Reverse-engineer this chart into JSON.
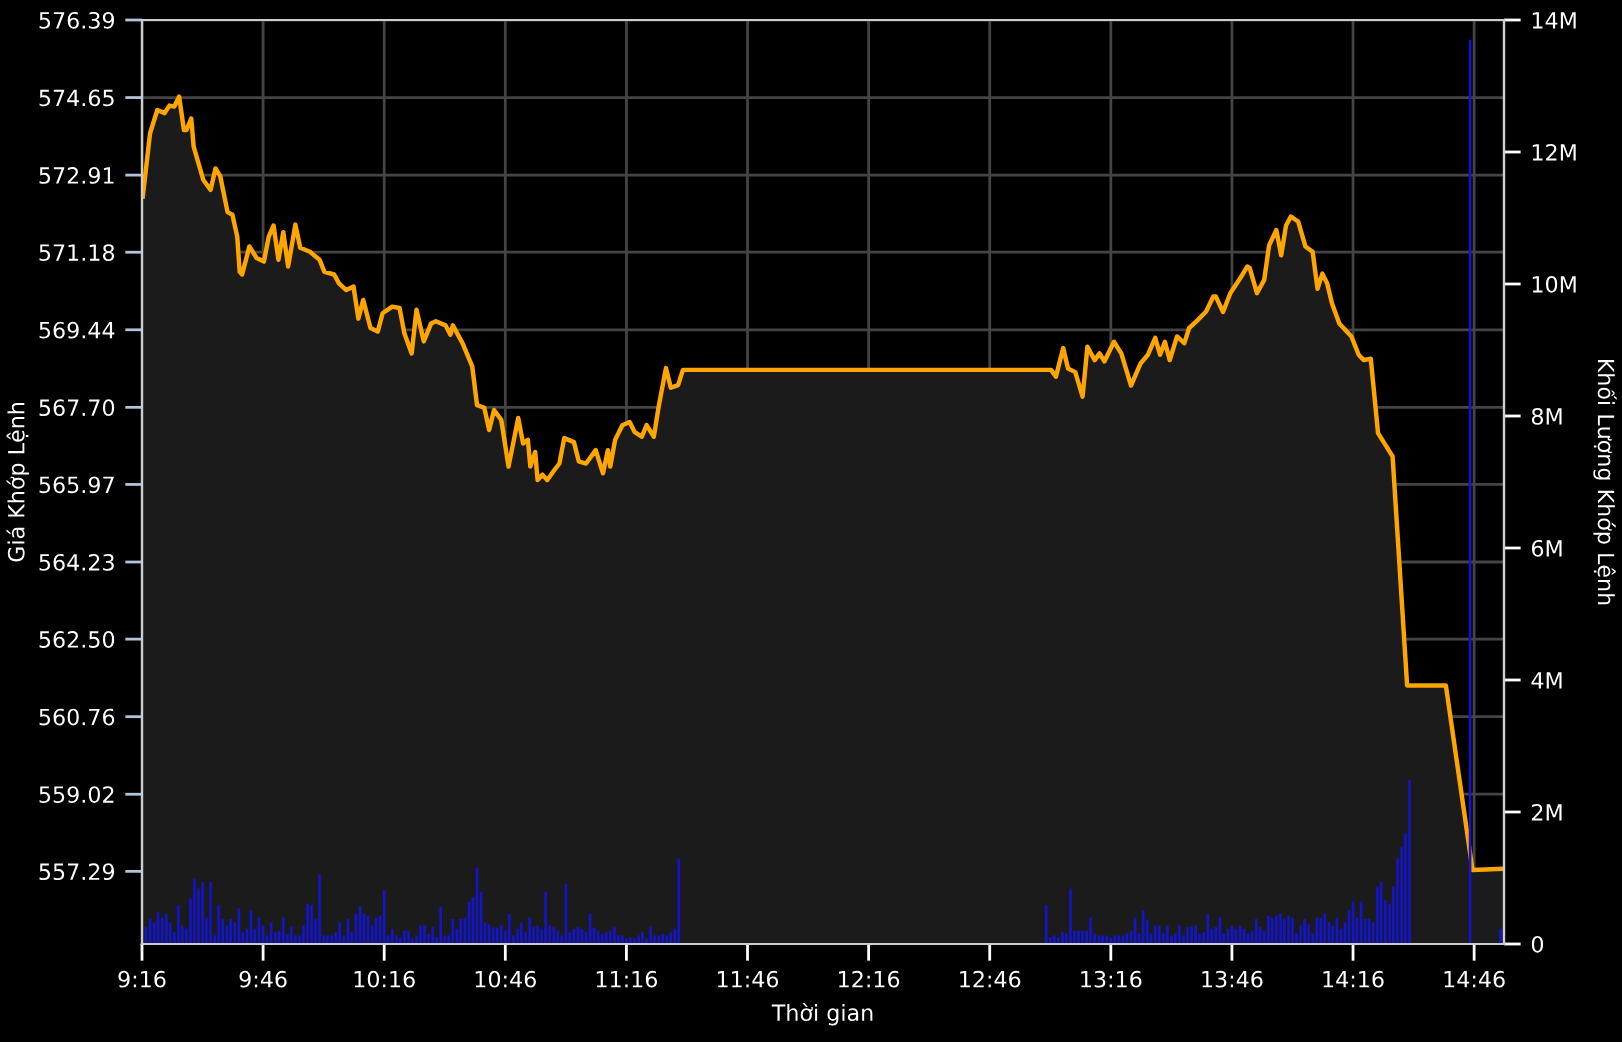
{
  "chart_data": {
    "type": "area",
    "xlabel": "Thời gian",
    "ylabel": "Giá Khớp Lệnh",
    "y2label": "Khối Lượng Khớp Lệnh",
    "xlim": [
      9.2667,
      14.89
    ],
    "xticks": [
      {
        "value": 9.2667,
        "label": "9:16"
      },
      {
        "value": 9.7667,
        "label": "9:46"
      },
      {
        "value": 10.2667,
        "label": "10:16"
      },
      {
        "value": 10.7667,
        "label": "10:46"
      },
      {
        "value": 11.2667,
        "label": "11:16"
      },
      {
        "value": 11.7667,
        "label": "11:46"
      },
      {
        "value": 12.2667,
        "label": "12:16"
      },
      {
        "value": 12.7667,
        "label": "12:46"
      },
      {
        "value": 13.2667,
        "label": "13:16"
      },
      {
        "value": 13.7667,
        "label": "13:46"
      },
      {
        "value": 14.2667,
        "label": "14:16"
      },
      {
        "value": 14.7667,
        "label": "14:46"
      }
    ],
    "ylim": [
      555.66,
      576.39
    ],
    "yticks": [
      {
        "value": 557.29,
        "label": "557.29"
      },
      {
        "value": 559.02,
        "label": "559.02"
      },
      {
        "value": 560.76,
        "label": "560.76"
      },
      {
        "value": 562.5,
        "label": "562.50"
      },
      {
        "value": 564.23,
        "label": "564.23"
      },
      {
        "value": 565.97,
        "label": "565.97"
      },
      {
        "value": 567.7,
        "label": "567.70"
      },
      {
        "value": 569.44,
        "label": "569.44"
      },
      {
        "value": 571.18,
        "label": "571.18"
      },
      {
        "value": 572.91,
        "label": "572.91"
      },
      {
        "value": 574.65,
        "label": "574.65"
      },
      {
        "value": 576.39,
        "label": "576.39"
      }
    ],
    "y2lim": [
      0,
      14000000
    ],
    "y2ticks": [
      {
        "value": 0,
        "label": "0"
      },
      {
        "value": 2000000,
        "label": "2M"
      },
      {
        "value": 4000000,
        "label": "4M"
      },
      {
        "value": 6000000,
        "label": "6M"
      },
      {
        "value": 8000000,
        "label": "8M"
      },
      {
        "value": 10000000,
        "label": "10M"
      },
      {
        "value": 12000000,
        "label": "12M"
      },
      {
        "value": 14000000,
        "label": "14M"
      }
    ],
    "grid": true,
    "series": [
      {
        "type": "bar",
        "axis": "y2",
        "color": "#1414c8",
        "x": [
          9.283,
          9.3,
          9.317,
          9.333,
          9.35,
          9.367,
          9.383,
          9.4,
          9.417,
          9.433,
          9.45,
          9.467,
          9.483,
          9.5,
          9.517,
          9.533,
          9.55,
          9.567,
          9.583,
          9.6,
          9.617,
          9.633,
          9.65,
          9.667,
          9.683,
          9.7,
          9.717,
          9.733,
          9.75,
          9.767,
          9.783,
          9.8,
          9.817,
          9.833,
          9.85,
          9.867,
          9.883,
          9.9,
          9.917,
          9.933,
          9.95,
          9.967,
          9.983,
          10.0,
          10.017,
          10.033,
          10.05,
          10.067,
          10.083,
          10.1,
          10.117,
          10.133,
          10.15,
          10.167,
          10.183,
          10.2,
          10.217,
          10.233,
          10.25,
          10.267,
          10.283,
          10.3,
          10.317,
          10.333,
          10.35,
          10.367,
          10.383,
          10.4,
          10.417,
          10.433,
          10.45,
          10.467,
          10.483,
          10.5,
          10.517,
          10.533,
          10.55,
          10.567,
          10.583,
          10.6,
          10.617,
          10.633,
          10.65,
          10.667,
          10.683,
          10.7,
          10.717,
          10.733,
          10.75,
          10.767,
          10.783,
          10.8,
          10.817,
          10.833,
          10.85,
          10.867,
          10.883,
          10.9,
          10.917,
          10.933,
          10.95,
          10.967,
          10.983,
          11.0,
          11.017,
          11.033,
          11.05,
          11.067,
          11.083,
          11.1,
          11.117,
          11.133,
          11.15,
          11.167,
          11.183,
          11.2,
          11.217,
          11.233,
          11.25,
          11.267,
          11.283,
          11.3,
          11.317,
          11.333,
          11.35,
          11.367,
          11.383,
          11.4,
          11.417,
          11.433,
          11.45,
          11.467,
          11.483,
          13.0,
          13.017,
          13.033,
          13.05,
          13.067,
          13.083,
          13.1,
          13.117,
          13.133,
          13.15,
          13.167,
          13.183,
          13.2,
          13.217,
          13.233,
          13.25,
          13.267,
          13.283,
          13.3,
          13.317,
          13.333,
          13.35,
          13.367,
          13.383,
          13.4,
          13.417,
          13.433,
          13.45,
          13.467,
          13.483,
          13.5,
          13.517,
          13.533,
          13.55,
          13.567,
          13.583,
          13.6,
          13.617,
          13.633,
          13.65,
          13.667,
          13.683,
          13.7,
          13.717,
          13.733,
          13.75,
          13.767,
          13.783,
          13.8,
          13.817,
          13.833,
          13.85,
          13.867,
          13.883,
          13.9,
          13.917,
          13.933,
          13.95,
          13.967,
          13.983,
          14.0,
          14.017,
          14.033,
          14.05,
          14.067,
          14.083,
          14.1,
          14.117,
          14.133,
          14.15,
          14.167,
          14.183,
          14.2,
          14.217,
          14.233,
          14.25,
          14.267,
          14.283,
          14.3,
          14.317,
          14.333,
          14.35,
          14.367,
          14.383,
          14.4,
          14.417,
          14.433,
          14.45,
          14.467,
          14.483,
          14.5,
          14.65,
          14.75,
          14.875
        ],
        "values": [
          260000,
          380000,
          330000,
          480000,
          400000,
          460000,
          330000,
          180000,
          590000,
          280000,
          230000,
          690000,
          990000,
          840000,
          940000,
          400000,
          940000,
          130000,
          590000,
          380000,
          280000,
          380000,
          330000,
          540000,
          180000,
          230000,
          510000,
          230000,
          400000,
          280000,
          130000,
          330000,
          180000,
          200000,
          400000,
          150000,
          260000,
          130000,
          130000,
          280000,
          610000,
          590000,
          380000,
          1060000,
          130000,
          130000,
          130000,
          180000,
          330000,
          130000,
          380000,
          180000,
          460000,
          570000,
          460000,
          430000,
          280000,
          400000,
          430000,
          820000,
          130000,
          230000,
          130000,
          100000,
          200000,
          200000,
          80000,
          130000,
          280000,
          280000,
          150000,
          260000,
          100000,
          570000,
          130000,
          130000,
          380000,
          230000,
          380000,
          400000,
          640000,
          710000,
          1160000,
          790000,
          330000,
          300000,
          250000,
          250000,
          280000,
          200000,
          460000,
          130000,
          230000,
          330000,
          180000,
          400000,
          260000,
          280000,
          230000,
          790000,
          280000,
          260000,
          200000,
          130000,
          910000,
          180000,
          230000,
          260000,
          230000,
          180000,
          460000,
          250000,
          200000,
          150000,
          180000,
          200000,
          260000,
          130000,
          130000,
          80000,
          100000,
          80000,
          130000,
          180000,
          80000,
          260000,
          130000,
          130000,
          150000,
          130000,
          180000,
          230000,
          1290000,
          590000,
          100000,
          130000,
          100000,
          180000,
          160000,
          840000,
          200000,
          200000,
          200000,
          200000,
          400000,
          160000,
          130000,
          130000,
          130000,
          100000,
          130000,
          130000,
          130000,
          160000,
          200000,
          400000,
          160000,
          510000,
          360000,
          160000,
          280000,
          280000,
          160000,
          280000,
          130000,
          160000,
          280000,
          130000,
          260000,
          260000,
          280000,
          160000,
          180000,
          460000,
          230000,
          260000,
          400000,
          160000,
          230000,
          280000,
          230000,
          280000,
          230000,
          160000,
          200000,
          380000,
          260000,
          200000,
          430000,
          400000,
          430000,
          460000,
          380000,
          430000,
          400000,
          160000,
          280000,
          380000,
          300000,
          160000,
          400000,
          400000,
          460000,
          330000,
          280000,
          400000,
          230000,
          330000,
          510000,
          640000,
          400000,
          640000,
          380000,
          380000,
          330000,
          870000,
          940000,
          670000,
          610000,
          870000,
          1290000,
          1470000,
          1680000,
          2480000,
          null,
          13700000,
          230000
        ]
      },
      {
        "color": "#ffa500",
        "x": [
          9.27,
          9.3,
          9.33,
          9.36,
          9.38,
          9.4,
          9.42,
          9.44,
          9.45,
          9.47,
          9.48,
          9.52,
          9.55,
          9.57,
          9.59,
          9.62,
          9.64,
          9.66,
          9.67,
          9.68,
          9.71,
          9.74,
          9.77,
          9.79,
          9.81,
          9.83,
          9.85,
          9.87,
          9.9,
          9.92,
          9.96,
          10.0,
          10.02,
          10.06,
          10.08,
          10.11,
          10.14,
          10.16,
          10.18,
          10.21,
          10.24,
          10.26,
          10.3,
          10.33,
          10.35,
          10.38,
          10.4,
          10.43,
          10.46,
          10.48,
          10.52,
          10.54,
          10.55,
          10.59,
          10.63,
          10.65,
          10.68,
          10.7,
          10.72,
          10.75,
          10.78,
          10.82,
          10.84,
          10.86,
          10.87,
          10.89,
          10.9,
          10.92,
          10.94,
          10.97,
          10.99,
          11.01,
          11.05,
          11.07,
          11.1,
          11.14,
          11.17,
          11.19,
          11.2,
          11.22,
          11.25,
          11.28,
          11.3,
          11.33,
          11.35,
          11.38,
          11.4,
          11.43,
          11.45,
          11.48,
          11.5,
          13.02,
          13.04,
          13.07,
          13.09,
          13.12,
          13.15,
          13.17,
          13.2,
          13.22,
          13.24,
          13.28,
          13.31,
          13.35,
          13.39,
          13.42,
          13.45,
          13.47,
          13.49,
          13.51,
          13.54,
          13.57,
          13.59,
          13.62,
          13.66,
          13.69,
          13.7,
          13.73,
          13.76,
          13.8,
          13.83,
          13.84,
          13.87,
          13.9,
          13.92,
          13.95,
          13.97,
          13.99,
          14.01,
          14.04,
          14.07,
          14.1,
          14.12,
          14.14,
          14.16,
          14.18,
          14.21,
          14.26,
          14.29,
          14.31,
          14.34,
          14.37,
          14.43,
          14.49,
          14.65,
          14.76,
          14.89
        ],
        "values": [
          572.43,
          573.85,
          574.37,
          574.3,
          574.47,
          574.45,
          574.67,
          573.92,
          573.92,
          574.18,
          573.55,
          572.8,
          572.58,
          573.06,
          572.88,
          572.08,
          572.02,
          571.53,
          570.74,
          570.68,
          571.31,
          571.05,
          570.97,
          571.53,
          571.78,
          571.01,
          571.63,
          570.86,
          571.8,
          571.28,
          571.19,
          571.01,
          570.74,
          570.68,
          570.48,
          570.33,
          570.41,
          569.69,
          570.11,
          569.48,
          569.4,
          569.81,
          569.96,
          569.93,
          569.36,
          568.91,
          569.89,
          569.18,
          569.58,
          569.63,
          569.54,
          569.33,
          569.54,
          569.14,
          568.62,
          567.75,
          567.69,
          567.19,
          567.64,
          567.42,
          566.37,
          567.46,
          566.89,
          566.97,
          566.37,
          566.7,
          566.07,
          566.19,
          566.07,
          566.3,
          566.44,
          567.01,
          566.92,
          566.49,
          566.44,
          566.74,
          566.22,
          566.74,
          566.37,
          566.97,
          567.3,
          567.37,
          567.15,
          567.04,
          567.3,
          567.04,
          567.72,
          568.58,
          568.14,
          568.2,
          568.54,
          568.54,
          568.39,
          569.03,
          568.57,
          568.49,
          567.94,
          569.06,
          568.76,
          568.91,
          568.73,
          569.17,
          568.91,
          568.19,
          568.69,
          568.88,
          569.26,
          568.88,
          569.17,
          568.76,
          569.29,
          569.14,
          569.48,
          569.63,
          569.85,
          570.19,
          570.19,
          569.84,
          570.26,
          570.59,
          570.86,
          570.83,
          570.26,
          570.56,
          571.33,
          571.68,
          571.11,
          571.78,
          571.98,
          571.87,
          571.31,
          571.19,
          570.36,
          570.7,
          570.48,
          570.03,
          569.58,
          569.29,
          568.88,
          568.76,
          568.79,
          567.12,
          566.6,
          561.46,
          561.46,
          557.32,
          557.35
        ]
      }
    ]
  }
}
